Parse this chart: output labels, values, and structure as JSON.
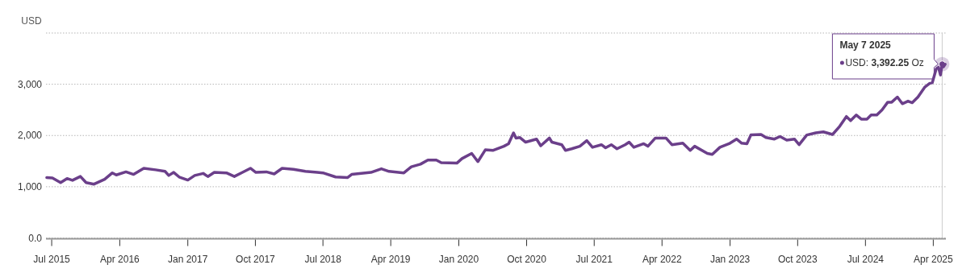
{
  "chart_data": {
    "type": "line",
    "ylabel": "USD",
    "x": [
      "2015-06-11",
      "2015-07-04",
      "2015-08-06",
      "2015-09-01",
      "2015-09-23",
      "2015-10-25",
      "2015-11-17",
      "2015-12-19",
      "2016-01-31",
      "2016-03-02",
      "2016-03-18",
      "2016-04-26",
      "2016-05-27",
      "2016-07-07",
      "2016-08-24",
      "2016-10-01",
      "2016-10-16",
      "2016-11-05",
      "2016-11-27",
      "2017-01-01",
      "2017-01-29",
      "2017-03-04",
      "2017-03-23",
      "2017-04-18",
      "2017-06-06",
      "2017-07-08",
      "2017-08-10",
      "2017-09-11",
      "2017-10-03",
      "2017-11-14",
      "2017-12-16",
      "2018-01-17",
      "2018-03-04",
      "2018-04-21",
      "2018-06-08",
      "2018-07-01",
      "2018-08-21",
      "2018-10-09",
      "2018-10-25",
      "2019-01-11",
      "2019-02-22",
      "2019-03-25",
      "2019-05-24",
      "2019-06-23",
      "2019-07-30",
      "2019-08-29",
      "2019-10-02",
      "2019-10-22",
      "2019-12-24",
      "2020-01-14",
      "2020-02-22",
      "2020-03-18",
      "2020-04-17",
      "2020-05-19",
      "2020-07-01",
      "2020-07-20",
      "2020-08-09",
      "2020-08-19",
      "2020-09-04",
      "2020-09-27",
      "2020-11-10",
      "2020-11-27",
      "2021-01-01",
      "2021-01-11",
      "2021-02-20",
      "2021-03-07",
      "2021-04-01",
      "2021-05-04",
      "2021-06-01",
      "2021-06-24",
      "2021-07-30",
      "2021-08-16",
      "2021-09-08",
      "2021-10-01",
      "2021-11-03",
      "2021-11-19",
      "2021-12-08",
      "2022-01-17",
      "2022-02-03",
      "2022-03-05",
      "2022-04-17",
      "2022-05-11",
      "2022-06-24",
      "2022-07-24",
      "2022-08-11",
      "2022-10-01",
      "2022-10-21",
      "2022-11-21",
      "2022-12-28",
      "2023-01-27",
      "2023-02-17",
      "2023-03-10",
      "2023-03-26",
      "2023-05-06",
      "2023-05-26",
      "2023-06-29",
      "2023-07-22",
      "2023-08-18",
      "2023-09-18",
      "2023-10-07",
      "2023-11-07",
      "2023-12-13",
      "2024-01-13",
      "2024-02-19",
      "2024-03-19",
      "2024-04-15",
      "2024-05-02",
      "2024-05-25",
      "2024-06-14",
      "2024-07-07",
      "2024-07-24",
      "2024-08-16",
      "2024-09-06",
      "2024-09-29",
      "2024-10-15",
      "2024-11-07",
      "2024-11-27",
      "2024-12-20",
      "2025-01-06",
      "2025-01-29",
      "2025-02-25",
      "2025-03-18",
      "2025-03-28",
      "2025-04-13",
      "2025-04-22",
      "2025-04-30",
      "2025-05-07",
      "2025-05-12",
      "2025-05-19"
    ],
    "series": [
      {
        "color": "#6b3f8a",
        "values": [
          1180,
          1170,
          1080,
          1160,
          1125,
          1200,
          1080,
          1050,
          1145,
          1270,
          1230,
          1290,
          1240,
          1360,
          1330,
          1300,
          1220,
          1280,
          1190,
          1130,
          1220,
          1260,
          1200,
          1280,
          1270,
          1200,
          1280,
          1360,
          1280,
          1290,
          1250,
          1360,
          1340,
          1300,
          1280,
          1270,
          1190,
          1180,
          1240,
          1280,
          1350,
          1300,
          1270,
          1390,
          1440,
          1520,
          1520,
          1470,
          1460,
          1550,
          1650,
          1490,
          1720,
          1710,
          1790,
          1840,
          2050,
          1950,
          1960,
          1870,
          1930,
          1800,
          1950,
          1870,
          1820,
          1710,
          1740,
          1790,
          1900,
          1770,
          1820,
          1760,
          1820,
          1740,
          1820,
          1870,
          1770,
          1840,
          1790,
          1950,
          1950,
          1820,
          1850,
          1710,
          1790,
          1650,
          1630,
          1770,
          1840,
          1930,
          1850,
          1840,
          2010,
          2020,
          1960,
          1930,
          1980,
          1910,
          1930,
          1820,
          2010,
          2050,
          2070,
          2020,
          2180,
          2370,
          2290,
          2400,
          2320,
          2320,
          2400,
          2400,
          2500,
          2650,
          2650,
          2750,
          2620,
          2670,
          2640,
          2750,
          2940,
          3020,
          3030,
          3300,
          3330,
          3180,
          3392.25,
          3340,
          3390
        ]
      }
    ],
    "xlim": [
      "2015-06-08",
      "2025-05-22"
    ],
    "xticks": [
      {
        "value": "2015-07-01",
        "label": "Jul 2015"
      },
      {
        "value": "2016-04-01",
        "label": "Apr 2016"
      },
      {
        "value": "2017-01-01",
        "label": "Jan 2017"
      },
      {
        "value": "2017-10-01",
        "label": "Oct 2017"
      },
      {
        "value": "2018-07-01",
        "label": "Jul 2018"
      },
      {
        "value": "2019-04-01",
        "label": "Apr 2019"
      },
      {
        "value": "2020-01-01",
        "label": "Jan 2020"
      },
      {
        "value": "2020-10-01",
        "label": "Oct 2020"
      },
      {
        "value": "2021-07-01",
        "label": "Jul 2021"
      },
      {
        "value": "2022-04-01",
        "label": "Apr 2022"
      },
      {
        "value": "2023-01-01",
        "label": "Jan 2023"
      },
      {
        "value": "2023-10-01",
        "label": "Oct 2023"
      },
      {
        "value": "2024-07-01",
        "label": "Jul 2024"
      },
      {
        "value": "2025-04-01",
        "label": "Apr 2025"
      }
    ],
    "ylim": [
      0,
      4000
    ],
    "yticks": [
      {
        "value": 0,
        "label": "0.0"
      },
      {
        "value": 1000,
        "label": "1,000"
      },
      {
        "value": 2000,
        "label": "2,000"
      },
      {
        "value": 3000,
        "label": "3,000"
      },
      {
        "value": 4000,
        "label": null
      }
    ],
    "grid": "y",
    "marker": "none",
    "ref_lines": [
      {
        "axis": "x",
        "value": "2025-05-07",
        "color": "#cccccc"
      }
    ],
    "line_style": "solid",
    "annotations": [
      {
        "text": "May 7 2025\nUSD: 3,392.25 Oz",
        "x": "2025-05-07",
        "y": 3392.25
      }
    ]
  }
}
